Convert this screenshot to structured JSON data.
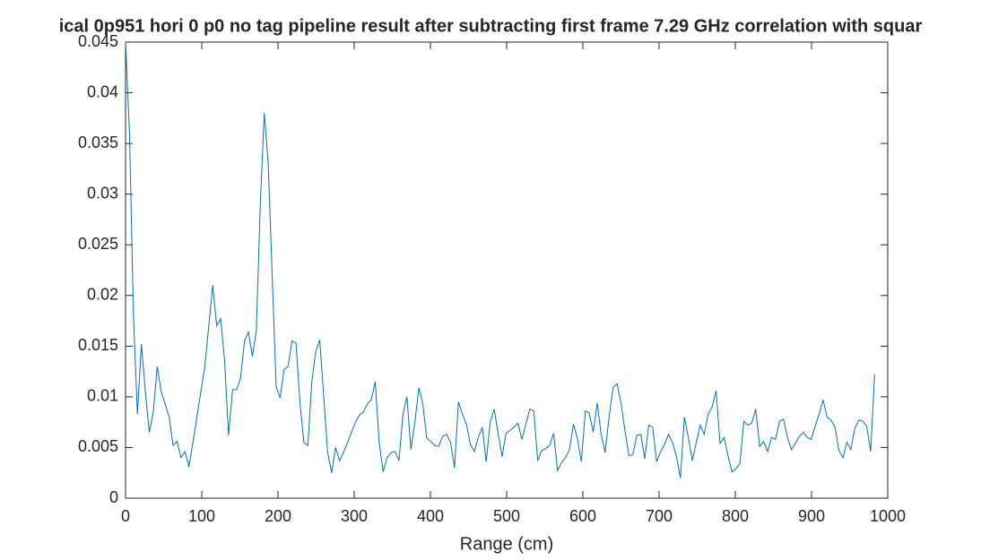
{
  "chart_data": {
    "type": "line",
    "title": "ical 0p951 hori 0 p0 no tag pipeline result after subtracting first frame 7.29 GHz correlation with squar",
    "x_label": "Range (cm)",
    "xlim": [
      0,
      1000
    ],
    "xticks": [
      0,
      100,
      200,
      300,
      400,
      500,
      600,
      700,
      800,
      900,
      1000
    ],
    "ylim": [
      0,
      0.045
    ],
    "yticks": [
      0,
      0.005,
      0.01,
      0.015,
      0.02,
      0.025,
      0.03,
      0.035,
      0.04,
      0.045
    ],
    "grid": false,
    "x": [
      0,
      5.2,
      10.4,
      15.6,
      20.8,
      26,
      31.2,
      36.4,
      41.6,
      46.8,
      52,
      57.2,
      62.4,
      67.6,
      72.8,
      78,
      83.2,
      88.4,
      93.6,
      98.8,
      104,
      109.2,
      114.4,
      119.6,
      124.8,
      130,
      135.2,
      140.4,
      145.6,
      150.8,
      156,
      161.2,
      166.4,
      171.6,
      176.8,
      182,
      187.2,
      192.4,
      197.6,
      202.8,
      208,
      213.2,
      218.4,
      223.6,
      228.8,
      234,
      239.2,
      244.4,
      249.6,
      254.8,
      260,
      265.2,
      270.4,
      275.6,
      280.8,
      286,
      291.2,
      296.4,
      301.6,
      306.8,
      312,
      317.2,
      322.4,
      327.6,
      332.8,
      338,
      343.2,
      348.4,
      353.6,
      358.8,
      364,
      369.2,
      374.4,
      379.6,
      384.8,
      390,
      395.2,
      400.4,
      405.6,
      410.8,
      416,
      421.2,
      426.4,
      431.6,
      436.8,
      442,
      447.2,
      452.4,
      457.6,
      462.8,
      468,
      473.2,
      478.4,
      483.6,
      488.8,
      494,
      499.2,
      504.4,
      509.6,
      514.8,
      520,
      525.2,
      530.4,
      535.6,
      540.8,
      546,
      551.2,
      556.4,
      561.6,
      566.8,
      572,
      577.2,
      582.4,
      587.6,
      592.8,
      598,
      603.2,
      608.4,
      613.6,
      618.8,
      624,
      629.2,
      634.4,
      639.6,
      644.8,
      650,
      655.2,
      660.4,
      665.6,
      670.8,
      676,
      681.2,
      686.4,
      691.6,
      696.8,
      702,
      707.2,
      712.4,
      717.6,
      722.8,
      728,
      733.2,
      738.4,
      743.6,
      748.8,
      754,
      759.2,
      764.4,
      769.6,
      774.8,
      780,
      785.2,
      790.4,
      795.6,
      800.8,
      806,
      811.2,
      816.4,
      821.6,
      826.8,
      832,
      837.2,
      842.4,
      847.6,
      852.8,
      858,
      863.2,
      868.4,
      873.6,
      878.8,
      884,
      889.2,
      894.4,
      899.6,
      904.8,
      910,
      915.2,
      920.4,
      925.6,
      930.8,
      936,
      941.2,
      946.4,
      951.6,
      956.8,
      962,
      967.2,
      972.4,
      977.6,
      982.8
    ],
    "series": [
      {
        "color": "#0072bd",
        "values": [
          0.045,
          0.036,
          0.018,
          0.0083,
          0.0152,
          0.0105,
          0.0065,
          0.0085,
          0.013,
          0.0105,
          0.0093,
          0.008,
          0.0052,
          0.0056,
          0.004,
          0.0046,
          0.0031,
          0.0055,
          0.008,
          0.0105,
          0.013,
          0.017,
          0.021,
          0.017,
          0.0177,
          0.0135,
          0.0062,
          0.0107,
          0.0107,
          0.0118,
          0.0155,
          0.0164,
          0.014,
          0.0165,
          0.029,
          0.038,
          0.033,
          0.022,
          0.011,
          0.0099,
          0.0127,
          0.013,
          0.0155,
          0.0153,
          0.0095,
          0.0055,
          0.0052,
          0.0115,
          0.0145,
          0.0156,
          0.01,
          0.0045,
          0.0025,
          0.005,
          0.0037,
          0.0045,
          0.0055,
          0.0065,
          0.0075,
          0.0082,
          0.0085,
          0.0093,
          0.0097,
          0.0115,
          0.0055,
          0.0026,
          0.004,
          0.0045,
          0.0046,
          0.0037,
          0.0083,
          0.01,
          0.0048,
          0.0075,
          0.0109,
          0.0093,
          0.0059,
          0.0056,
          0.0052,
          0.0051,
          0.0061,
          0.0063,
          0.0055,
          0.003,
          0.0095,
          0.0083,
          0.0073,
          0.0053,
          0.0046,
          0.006,
          0.007,
          0.0036,
          0.0075,
          0.0088,
          0.0064,
          0.0041,
          0.0064,
          0.0067,
          0.007,
          0.0074,
          0.0058,
          0.0073,
          0.0088,
          0.0086,
          0.0037,
          0.0047,
          0.0049,
          0.0052,
          0.0064,
          0.0027,
          0.0035,
          0.004,
          0.0048,
          0.0073,
          0.0059,
          0.0036,
          0.0086,
          0.0084,
          0.0065,
          0.0094,
          0.0063,
          0.0045,
          0.008,
          0.0109,
          0.0113,
          0.0094,
          0.0067,
          0.0042,
          0.0043,
          0.0062,
          0.0063,
          0.0039,
          0.0072,
          0.007,
          0.0036,
          0.0046,
          0.0053,
          0.0063,
          0.0055,
          0.0041,
          0.002,
          0.008,
          0.006,
          0.0037,
          0.0055,
          0.0072,
          0.0063,
          0.0083,
          0.009,
          0.0106,
          0.0054,
          0.006,
          0.0042,
          0.0026,
          0.0029,
          0.0034,
          0.0076,
          0.0072,
          0.0074,
          0.0088,
          0.0051,
          0.0056,
          0.0046,
          0.006,
          0.0058,
          0.0076,
          0.0078,
          0.006,
          0.0048,
          0.0054,
          0.0061,
          0.0065,
          0.006,
          0.0058,
          0.0071,
          0.0083,
          0.0097,
          0.008,
          0.0077,
          0.007,
          0.0047,
          0.004,
          0.0055,
          0.0048,
          0.0069,
          0.0077,
          0.0076,
          0.0071,
          0.0046,
          0.0122
        ]
      }
    ]
  }
}
